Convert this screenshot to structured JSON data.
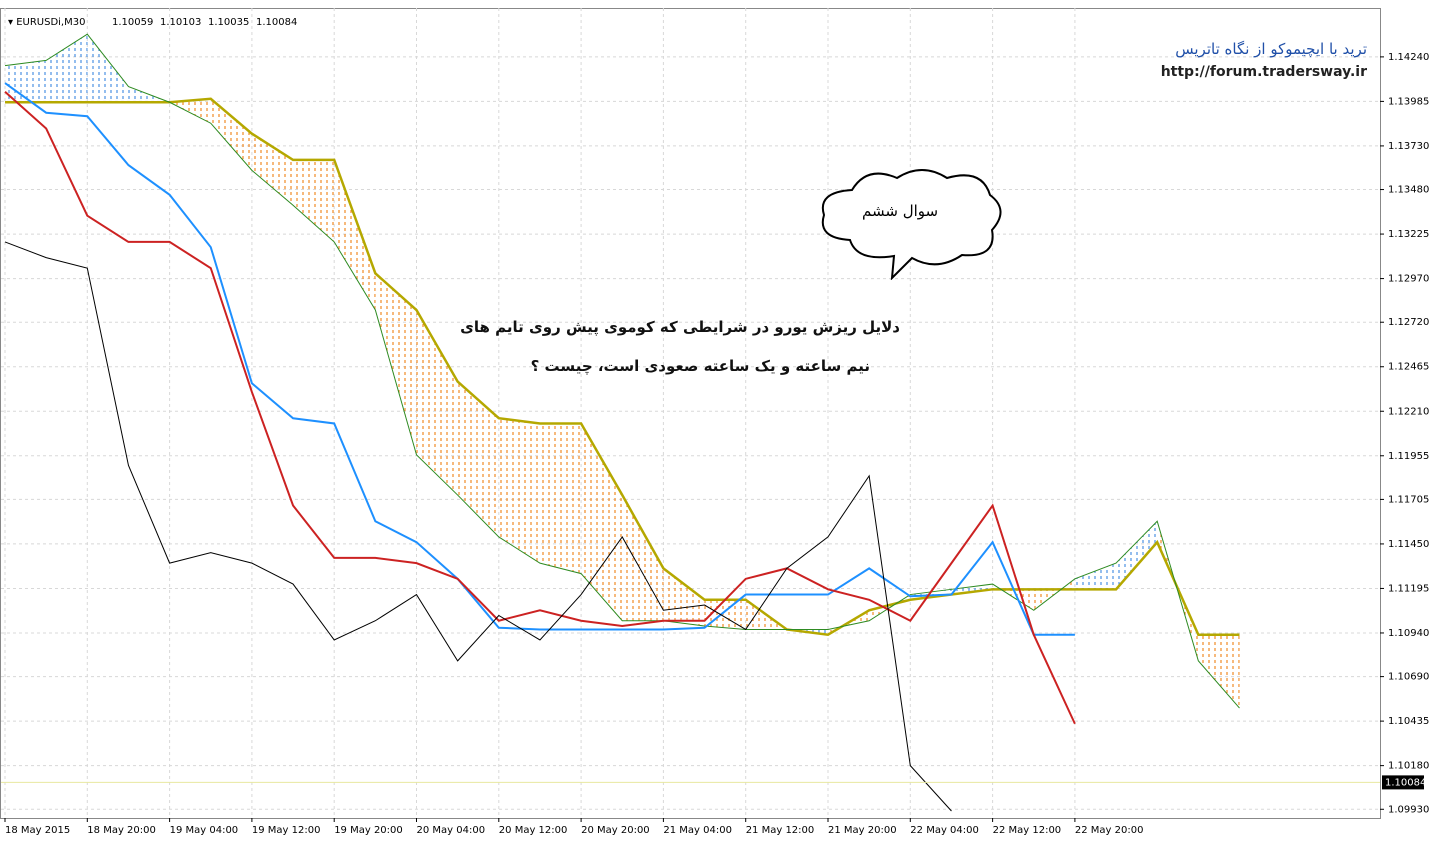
{
  "chart_data": {
    "type": "line",
    "header": {
      "symbol": "EURUSDi,M30",
      "ohlc": [
        1.10059,
        1.10103,
        1.10035,
        1.10084
      ]
    },
    "last_price": 1.10084,
    "annotations": {
      "title": "ترید با ایچیموکو از نگاه تاتریس",
      "url": "http://forum.tradersway.ir",
      "bubble": "سوال ششم",
      "question": [
        "دلایل ریزش یورو در شرایطی که کوموی پیش روی تایم های",
        "نیم ساعته و یک ساعته صعودی است، چیست ؟"
      ]
    },
    "categories": [
      "18 May 2015",
      null,
      "18 May 20:00",
      null,
      "19 May 04:00",
      null,
      "19 May 12:00",
      null,
      "19 May 20:00",
      null,
      "20 May 04:00",
      null,
      "20 May 12:00",
      null,
      "20 May 20:00",
      null,
      "21 May 04:00",
      null,
      "21 May 12:00",
      null,
      "21 May 20:00",
      null,
      "22 May 04:00",
      null,
      "22 May 12:00",
      null,
      "22 May 20:00",
      null,
      null,
      null,
      null
    ],
    "series": [
      {
        "color": "#b5a800",
        "width": 2.5,
        "values": [
          1.1398,
          1.1398,
          1.1398,
          1.1398,
          1.1398,
          1.14,
          1.138,
          1.1365,
          1.1365,
          1.13,
          1.1279,
          1.1238,
          1.1217,
          1.1214,
          1.1214,
          1.1173,
          1.1131,
          1.1113,
          1.1113,
          1.1096,
          1.1093,
          1.1107,
          1.1113,
          1.1116,
          1.1119,
          1.1119,
          1.1119,
          1.1119,
          1.1146,
          1.1093,
          1.1093
        ]
      },
      {
        "color": "#2e8b22",
        "width": 1,
        "values": [
          1.1419,
          1.1422,
          1.1437,
          1.1407,
          1.1398,
          1.1386,
          1.1359,
          1.1339,
          1.1318,
          1.1279,
          1.1196,
          1.1173,
          1.1149,
          1.1134,
          1.1128,
          1.1101,
          1.1101,
          1.1098,
          1.1096,
          1.1096,
          1.1096,
          1.1101,
          1.1116,
          1.1119,
          1.1122,
          1.1107,
          1.1125,
          1.1134,
          1.1158,
          1.1078,
          1.1051
        ]
      },
      {
        "color": "#1e90ff",
        "width": 2,
        "values": [
          1.1409,
          1.1392,
          1.139,
          1.1362,
          1.1345,
          1.1315,
          1.1237,
          1.1217,
          1.1214,
          1.1158,
          1.1146,
          1.1125,
          1.1097,
          1.1096,
          1.1096,
          1.1096,
          1.1096,
          1.1097,
          1.1116,
          1.1116,
          1.1116,
          1.1131,
          1.1115,
          1.1116,
          1.1146,
          1.1093,
          1.1093,
          null,
          null,
          null,
          null
        ]
      },
      {
        "color": "#cc2222",
        "width": 2,
        "values": [
          1.1404,
          1.1383,
          1.1333,
          1.1318,
          1.1318,
          1.1303,
          1.1232,
          1.1167,
          1.1137,
          1.1137,
          1.1134,
          1.1125,
          1.1101,
          1.1107,
          1.1101,
          1.1098,
          1.1101,
          1.1101,
          1.1125,
          1.1131,
          1.1119,
          1.1113,
          1.1101,
          1.1134,
          1.1167,
          1.1093,
          1.1042,
          null,
          null,
          null,
          null
        ]
      },
      {
        "color": "#000000",
        "width": 1,
        "values": [
          1.1318,
          1.1309,
          1.1303,
          1.119,
          1.1134,
          1.114,
          1.1134,
          1.1122,
          1.109,
          1.1101,
          1.1116,
          1.1078,
          1.1104,
          1.109,
          1.1116,
          1.1149,
          1.1107,
          1.111,
          1.1096,
          1.1131,
          1.1149,
          1.1184,
          1.1018,
          1.0992,
          null,
          null,
          null,
          null,
          null,
          null,
          null
        ]
      }
    ],
    "cloud_colors": {
      "bear": "#f08a24",
      "bull": "#4a90e2"
    },
    "ylim": [
      1.0988,
      1.1452
    ],
    "yticks": [
      {
        "value": 1.1424,
        "label": "1.14240"
      },
      1.13985,
      {
        "value": 1.1373,
        "label": "1.13730"
      },
      {
        "value": 1.1348,
        "label": "1.13480"
      },
      1.13225,
      {
        "value": 1.1297,
        "label": "1.12970"
      },
      {
        "value": 1.1272,
        "label": "1.12720"
      },
      1.12465,
      {
        "value": 1.1221,
        "label": "1.12210"
      },
      1.11955,
      1.11705,
      {
        "value": 1.1145,
        "label": "1.11450"
      },
      1.11195,
      {
        "value": 1.1094,
        "label": "1.10940"
      },
      {
        "value": 1.1069,
        "label": "1.10690"
      },
      1.10435,
      {
        "value": 1.1018,
        "label": "1.10180"
      },
      {
        "value": 1.0993,
        "label": "1.09930"
      }
    ],
    "grid": true
  }
}
